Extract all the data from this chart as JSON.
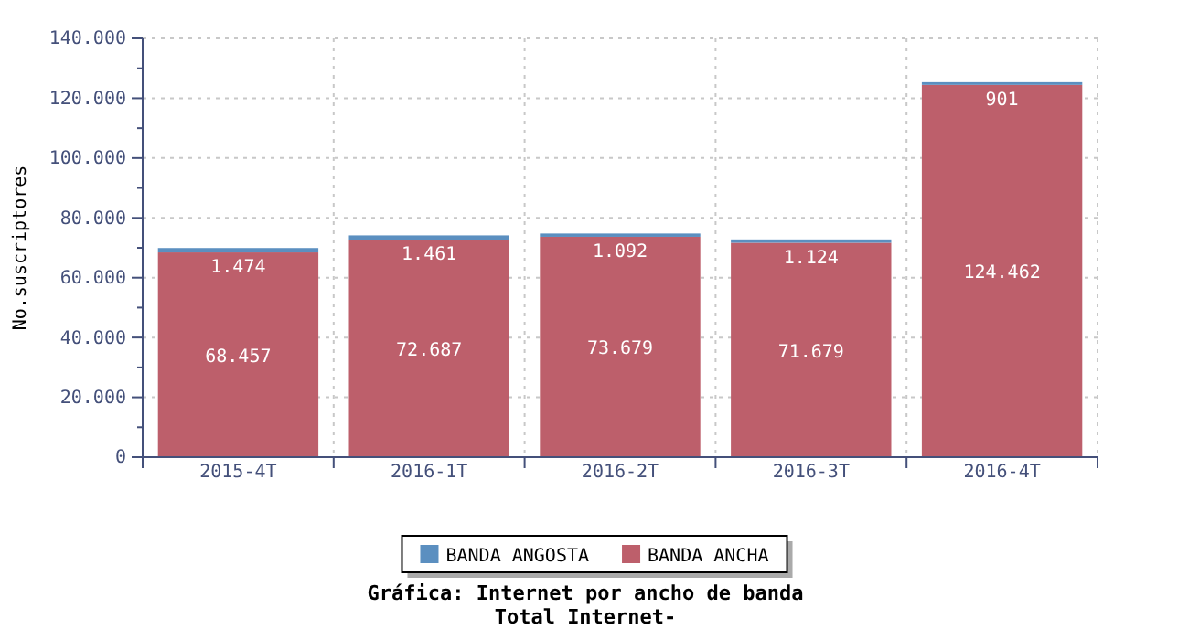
{
  "chart_data": {
    "type": "bar",
    "title": "Gráfica: Internet por ancho de banda",
    "subtitle": "Total Internet-",
    "ylabel": "No.suscriptores",
    "categories": [
      "2015-4T",
      "2016-1T",
      "2016-2T",
      "2016-3T",
      "2016-4T"
    ],
    "stacked": true,
    "series": [
      {
        "name": "BANDA ANCHA",
        "color": "#bd5f6b",
        "values": [
          68457,
          72687,
          73679,
          71679,
          124462
        ],
        "value_labels": [
          "68.457",
          "72.687",
          "73.679",
          "71.679",
          "124.462"
        ]
      },
      {
        "name": "BANDA ANGOSTA",
        "color": "#5b8fc0",
        "values": [
          1474,
          1461,
          1092,
          1124,
          901
        ],
        "value_labels": [
          "1.474",
          "1.461",
          "1.092",
          "1.124",
          "901"
        ]
      }
    ],
    "ylim": [
      0,
      140000
    ],
    "yticks": [
      0,
      {
        "value": 10000,
        "label": null
      },
      {
        "value": 20000,
        "label": "20.000"
      },
      {
        "value": 30000,
        "label": null
      },
      {
        "value": 40000,
        "label": "40.000"
      },
      {
        "value": 50000,
        "label": null
      },
      {
        "value": 60000,
        "label": "60.000"
      },
      {
        "value": 70000,
        "label": null
      },
      {
        "value": 80000,
        "label": "80.000"
      },
      {
        "value": 90000,
        "label": null
      },
      {
        "value": 100000,
        "label": "100.000"
      },
      {
        "value": 110000,
        "label": null
      },
      {
        "value": 120000,
        "label": "120.000"
      },
      {
        "value": 130000,
        "label": null
      },
      {
        "value": 140000,
        "label": "140.000"
      }
    ],
    "grid": true,
    "legend": "bottom"
  }
}
